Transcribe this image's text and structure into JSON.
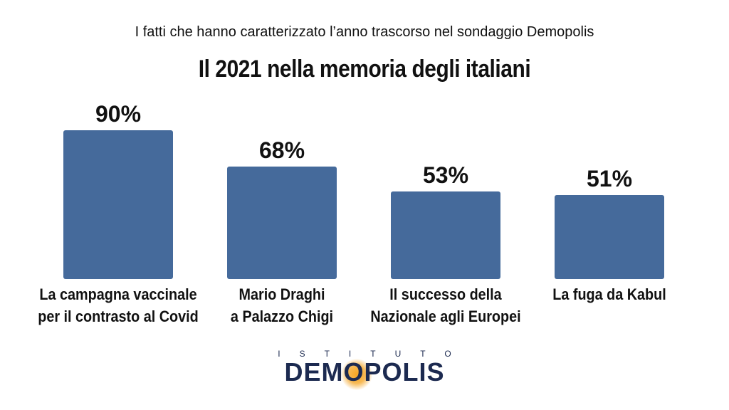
{
  "header": {
    "subtitle": "I fatti che hanno caratterizzato l’anno trascorso nel sondaggio Demopolis",
    "title": "Il 2021 nella memoria degli italiani"
  },
  "chart_data": {
    "type": "bar",
    "categories": [
      [
        "La campagna vaccinale",
        "per il contrasto al Covid"
      ],
      [
        "Mario Draghi",
        "a Palazzo Chigi"
      ],
      [
        "Il successo della",
        "Nazionale agli Europei"
      ],
      [
        "La fuga da Kabul"
      ]
    ],
    "values": [
      90,
      68,
      53,
      51
    ],
    "value_labels": [
      "90%",
      "68%",
      "53%",
      "51%"
    ],
    "ylim": [
      0,
      90
    ],
    "bar_color": "#456a9b",
    "grid": false,
    "legend": "none"
  },
  "logo": {
    "top_text": "ISTITUTO",
    "main_text": "DEMOPOLIS",
    "color": "#1c2a50",
    "accent": "#f5a623"
  }
}
